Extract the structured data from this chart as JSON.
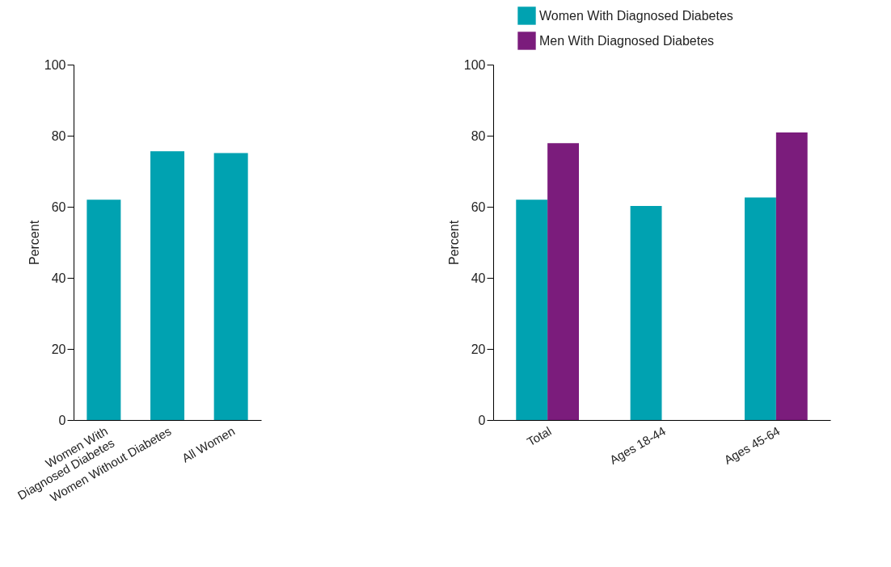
{
  "chart_data": [
    {
      "type": "bar",
      "categories": [
        "Women With\nDiagnosed Diabetes",
        "Women Without Diabetes",
        "All Women"
      ],
      "ylabel": "Percent",
      "ylim": [
        0,
        100
      ],
      "yticks": [
        0,
        20,
        40,
        60,
        80,
        100
      ],
      "grid": false,
      "legend": false,
      "series": [
        {
          "color": "#00a2b1",
          "values": [
            62,
            75.6,
            75.1
          ]
        }
      ]
    },
    {
      "type": "bar",
      "categories": [
        "Total",
        "Ages 18-44",
        "Ages 45-64"
      ],
      "ylabel": "Percent",
      "ylim": [
        0,
        100
      ],
      "yticks": [
        0,
        20,
        40,
        60,
        80,
        100
      ],
      "grid": false,
      "legend": "top left",
      "series": [
        {
          "name": "Women With Diagnosed Diabetes",
          "color": "#00a2b1",
          "values": [
            62,
            60.2,
            62.6
          ]
        },
        {
          "name": "Men With Diagnosed Diabetes",
          "color": "#7b1c7c",
          "values": [
            77.9,
            null,
            80.9
          ]
        }
      ]
    }
  ]
}
